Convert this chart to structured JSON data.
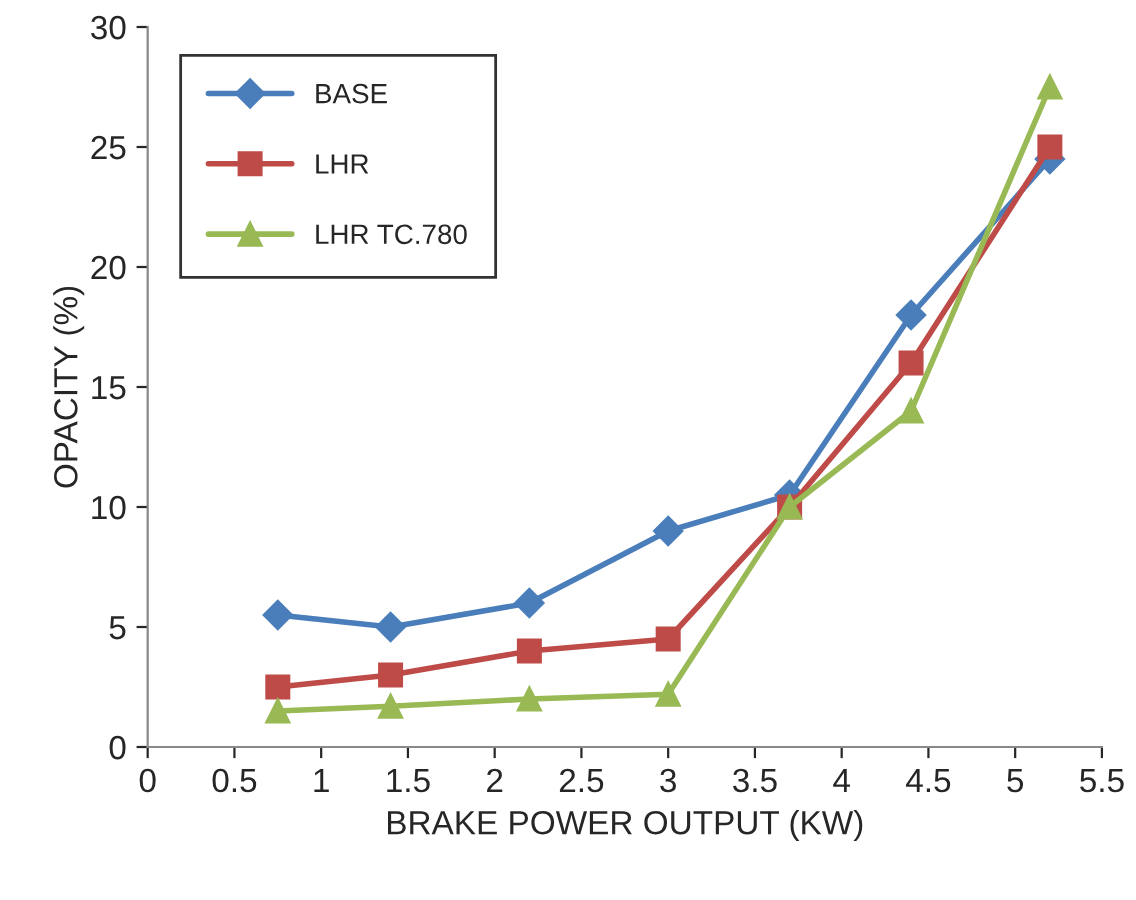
{
  "chart_data": {
    "type": "line",
    "xlabel": "BRAKE POWER OUTPUT (KW)",
    "ylabel": "OPACITY (%)",
    "x": [
      0.75,
      1.4,
      2.2,
      3,
      3.7,
      4.4,
      5.2
    ],
    "series": [
      {
        "name": "BASE",
        "color": "#4a7ebb",
        "marker": "diamond",
        "values": [
          5.5,
          5,
          6,
          9,
          10.5,
          18,
          24.5
        ]
      },
      {
        "name": "LHR",
        "color": "#be4b48",
        "marker": "square",
        "values": [
          2.5,
          3,
          4,
          4.5,
          10,
          16,
          25
        ]
      },
      {
        "name": "LHR TC.780",
        "color": "#98b954",
        "marker": "triangle",
        "values": [
          1.5,
          1.7,
          2,
          2.2,
          10,
          14,
          27.5
        ]
      }
    ],
    "xlim": [
      0,
      5.5
    ],
    "xticks": [
      0,
      0.5,
      1,
      1.5,
      2,
      2.5,
      3,
      3.5,
      4,
      4.5,
      5,
      5.5
    ],
    "ylim": [
      0,
      30
    ],
    "yticks": [
      0,
      5,
      10,
      15,
      20,
      25,
      30
    ],
    "legend": "top left",
    "grid": false,
    "line_style": "solid"
  }
}
